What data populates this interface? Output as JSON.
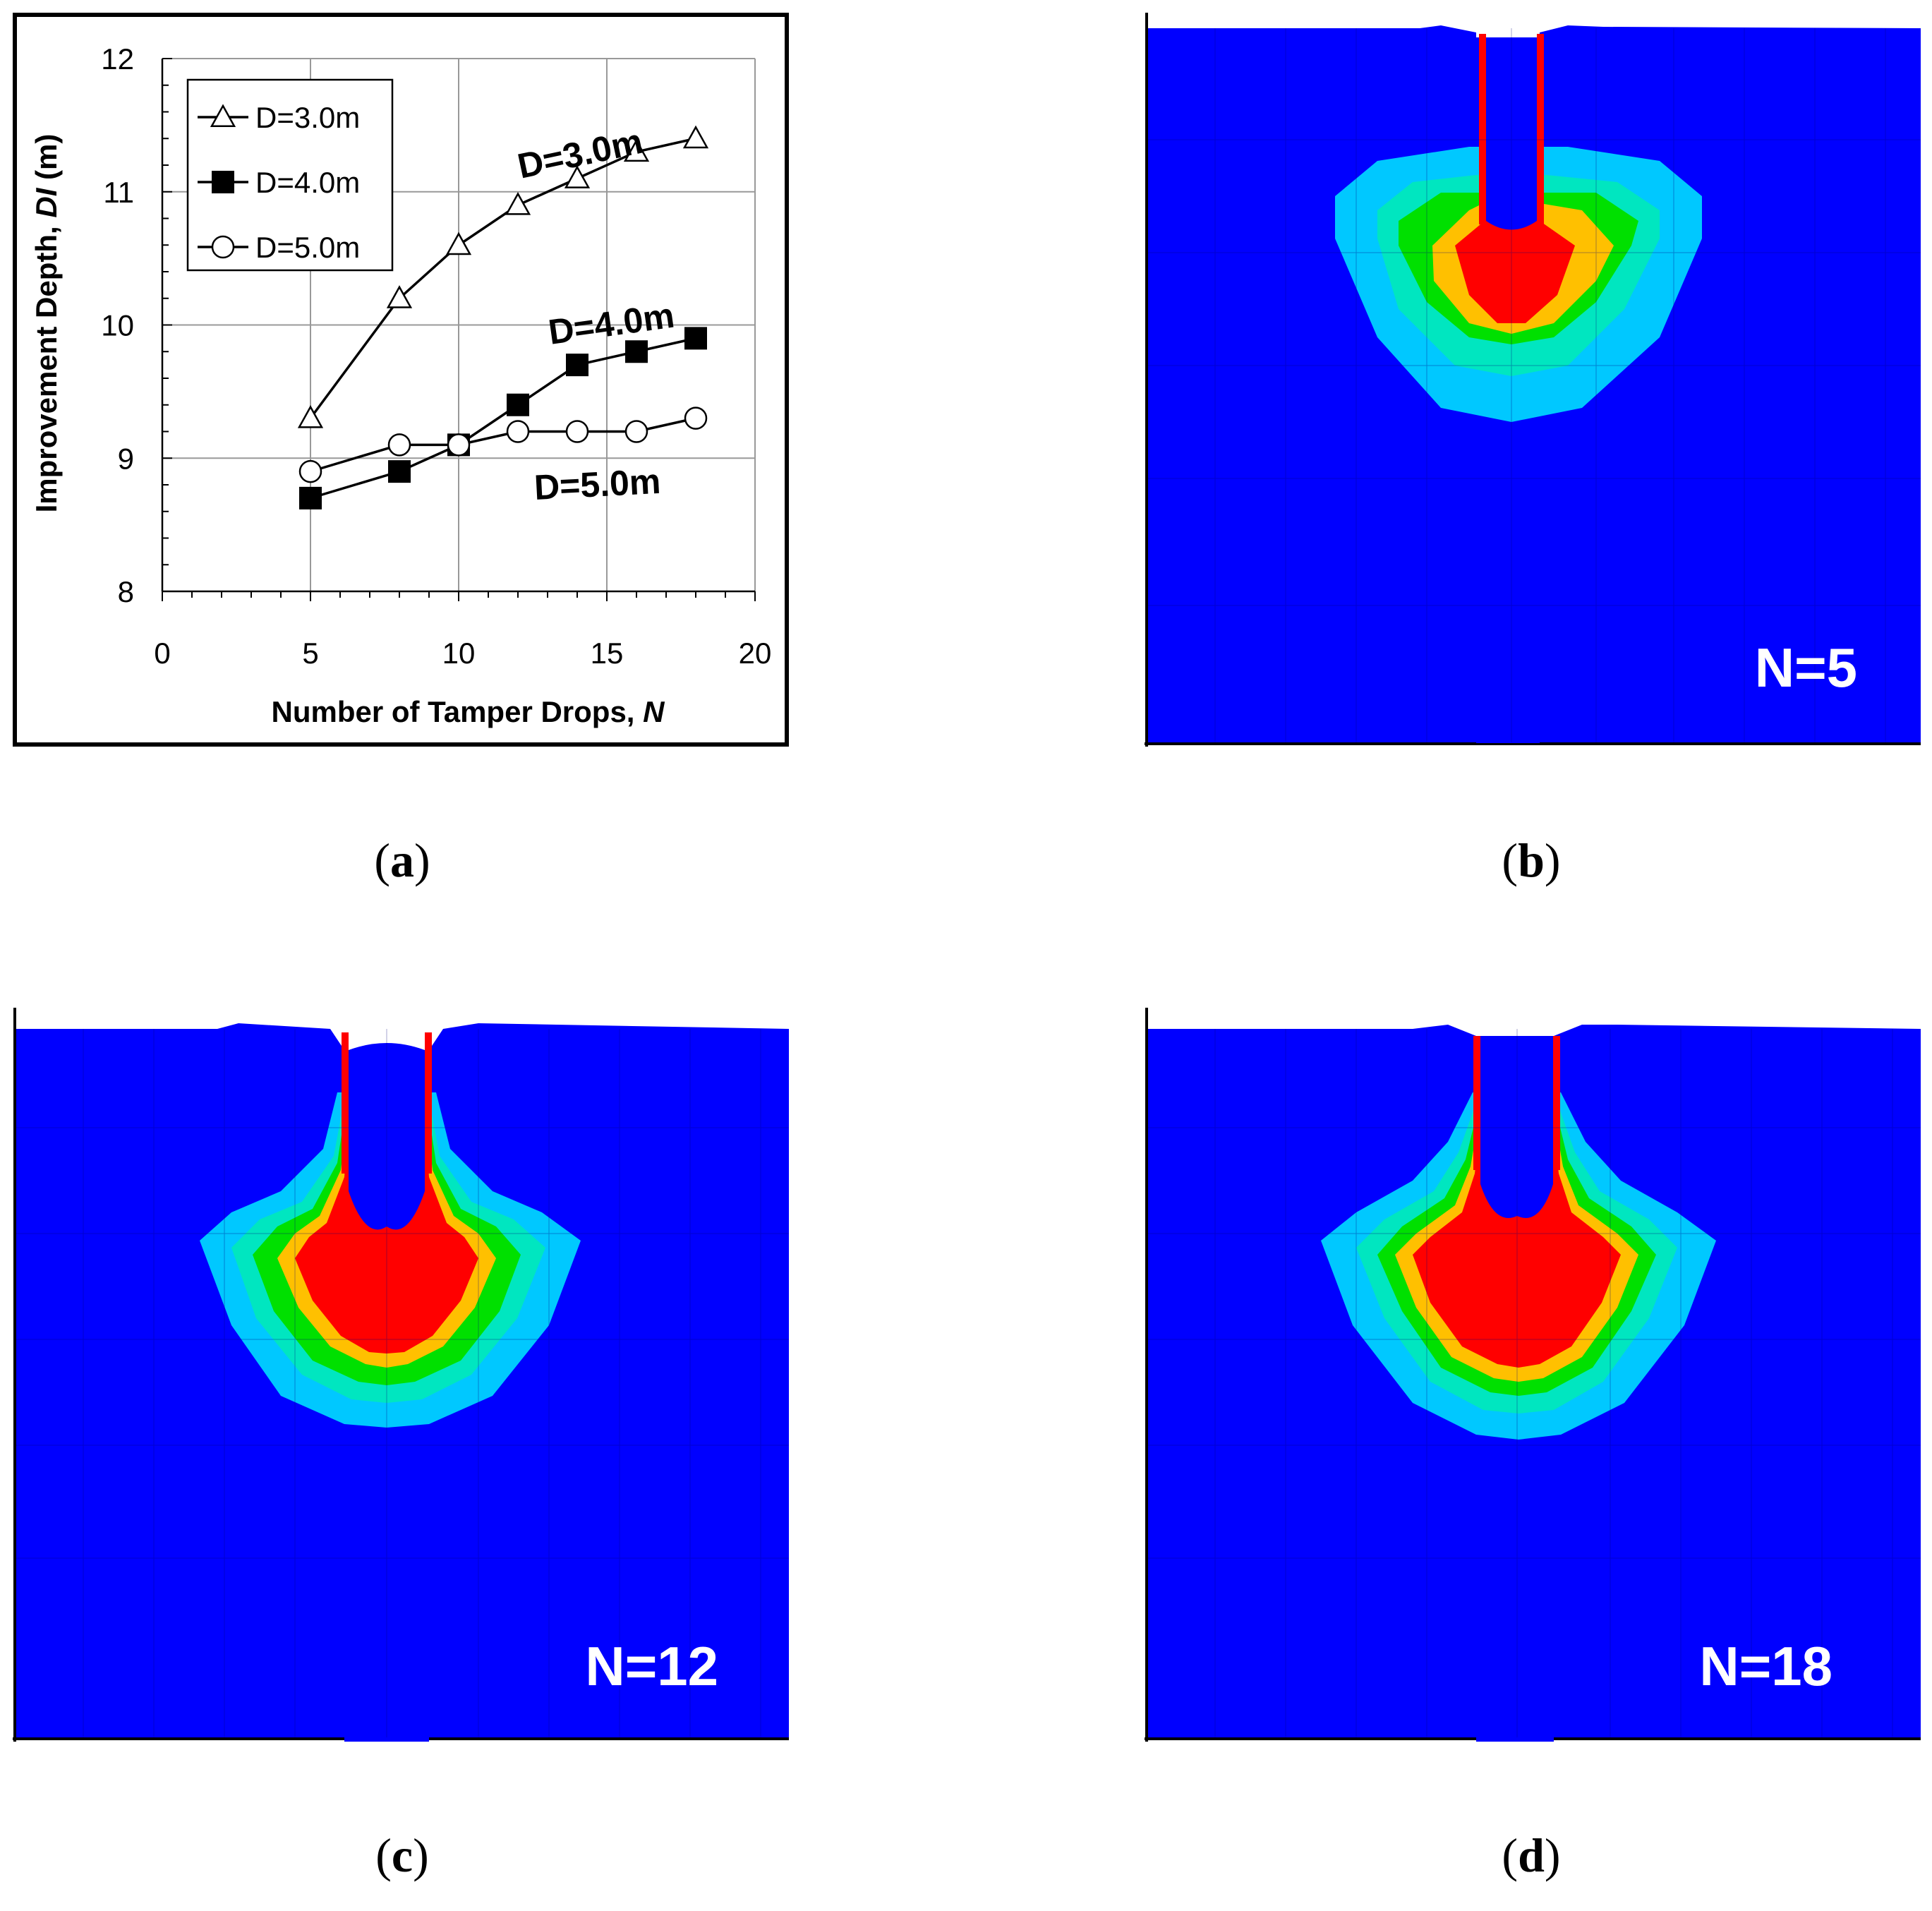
{
  "chart_data": {
    "type": "line",
    "title": "",
    "xlabel": "Number of Tamper  Drops, ",
    "xlabel_italic": "N",
    "ylabel": "Improvement Depth, ",
    "ylabel_italic": "DI",
    "ylabel_unit": " (m)",
    "xlim": [
      0,
      20
    ],
    "ylim": [
      8,
      12
    ],
    "xticks": [
      "0",
      "5",
      "10",
      "15",
      "20"
    ],
    "yticks": [
      "8",
      "9",
      "10",
      "11",
      "12"
    ],
    "grid": true,
    "legend_position": "top-left",
    "series": [
      {
        "name": "D=3.0m",
        "marker": "open-triangle",
        "x": [
          5,
          8,
          10,
          12,
          14,
          16,
          18
        ],
        "y": [
          9.3,
          10.2,
          10.6,
          10.9,
          11.1,
          11.3,
          11.4
        ],
        "annotation": "D=3.0m"
      },
      {
        "name": "D=4.0m",
        "marker": "filled-square",
        "x": [
          5,
          8,
          10,
          12,
          14,
          16,
          18
        ],
        "y": [
          8.7,
          8.9,
          9.1,
          9.4,
          9.7,
          9.8,
          9.9
        ],
        "annotation": "D=4.0m"
      },
      {
        "name": "D=5.0m",
        "marker": "open-circle",
        "x": [
          5,
          8,
          10,
          12,
          14,
          16,
          18
        ],
        "y": [
          8.9,
          9.1,
          9.1,
          9.2,
          9.2,
          9.2,
          9.3
        ],
        "annotation": "D=5.0m"
      }
    ]
  },
  "contours": {
    "colors": {
      "background": "#0000ff",
      "cyan": "#00c8ff",
      "aqua": "#00e6c0",
      "green": "#00e000",
      "yellow": "#ffc000",
      "red": "#ff0000"
    },
    "b_label": "N=5",
    "c_label": "N=12",
    "d_label": "N=18"
  },
  "captions": {
    "a": "a",
    "b": "b",
    "c": "c",
    "d": "d"
  }
}
